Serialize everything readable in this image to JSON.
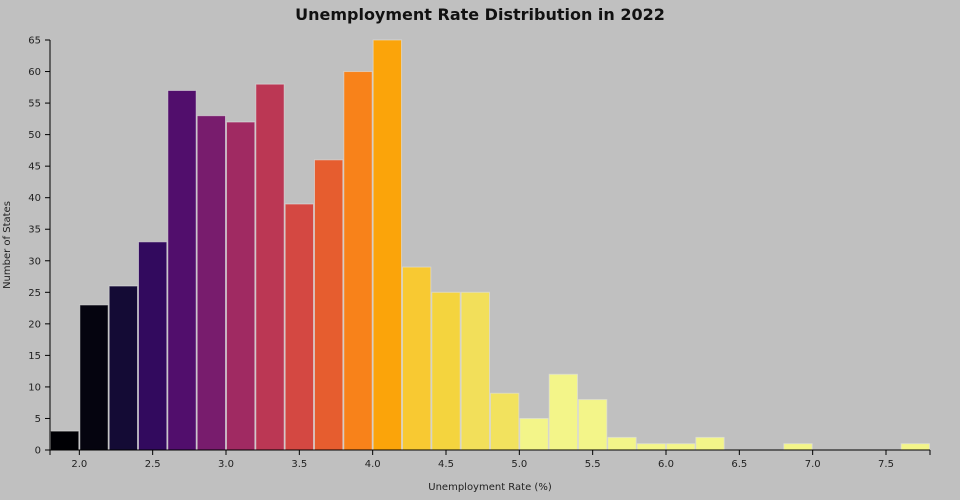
{
  "chart_data": {
    "type": "bar",
    "subtype": "histogram",
    "title": "Unemployment Rate Distribution in 2022",
    "xlabel": "Unemployment Rate (%)",
    "ylabel": "Number of States",
    "xlim": [
      1.8,
      7.8
    ],
    "ylim": [
      0,
      65
    ],
    "bin_width": 0.2,
    "bin_starts": [
      1.8,
      2.0,
      2.2,
      2.4,
      2.6,
      2.8,
      3.0,
      3.2,
      3.4,
      3.6,
      3.8,
      4.0,
      4.2,
      4.4,
      4.6,
      4.8,
      5.0,
      5.2,
      5.4,
      5.6,
      5.8,
      6.0,
      6.2,
      6.4,
      6.6,
      6.8,
      7.0,
      7.2,
      7.4,
      7.6
    ],
    "values": [
      3,
      23,
      26,
      33,
      57,
      53,
      52,
      58,
      39,
      46,
      60,
      65,
      29,
      25,
      25,
      9,
      5,
      12,
      8,
      2,
      1,
      1,
      2,
      0,
      0,
      1,
      0,
      0,
      0,
      1
    ],
    "colors": [
      "#000004",
      "#05040f",
      "#140b35",
      "#320a5e",
      "#510e6c",
      "#781c6d",
      "#a02a62",
      "#bb3754",
      "#d44842",
      "#e65d2f",
      "#f8821a",
      "#fba40a",
      "#f8c932",
      "#f4d43e",
      "#f2df5a",
      "#f2e25e",
      "#f3f589",
      "#f3f589",
      "#f3f589",
      "#f3f589",
      "#f3f589",
      "#f3f589",
      "#f3f589",
      "#f3f589",
      "#f3f589",
      "#f3f589",
      "#f3f589",
      "#f3f589",
      "#f3f589",
      "#f3f589"
    ],
    "x_ticks": [
      "2.0",
      "2.5",
      "3.0",
      "3.5",
      "4.0",
      "4.5",
      "5.0",
      "5.5",
      "6.0",
      "6.5",
      "7.0",
      "7.5"
    ],
    "y_ticks": [
      "0",
      "5",
      "10",
      "15",
      "20",
      "25",
      "30",
      "35",
      "40",
      "45",
      "50",
      "55",
      "60",
      "65"
    ],
    "grid": false,
    "legend": "none"
  }
}
